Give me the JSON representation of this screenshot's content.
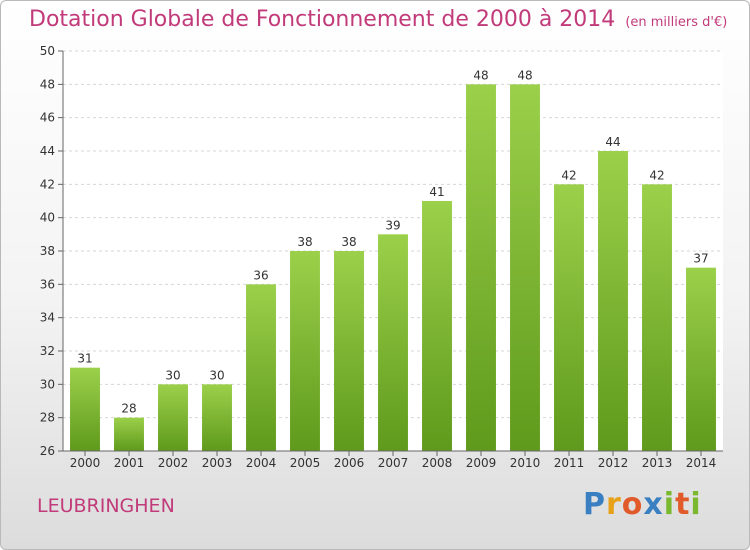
{
  "chart_data": {
    "type": "bar",
    "title": "Dotation Globale de Fonctionnement de 2000 à 2014",
    "subtitle": "(en milliers d'€)",
    "categories": [
      "2000",
      "2001",
      "2002",
      "2003",
      "2004",
      "2005",
      "2006",
      "2007",
      "2008",
      "2009",
      "2010",
      "2011",
      "2012",
      "2013",
      "2014"
    ],
    "values": [
      31,
      28,
      30,
      30,
      36,
      38,
      38,
      39,
      41,
      48,
      48,
      42,
      44,
      42,
      37
    ],
    "ylim": [
      26,
      50
    ],
    "yticks": [
      26,
      28,
      30,
      32,
      34,
      36,
      38,
      40,
      42,
      44,
      46,
      48,
      50
    ],
    "grid": true,
    "bar_color": "#7ab82e"
  },
  "footer": {
    "commune": "LEUBRINGHEN",
    "logo_letters": [
      "P",
      "r",
      "o",
      "x",
      "i",
      "t",
      "i"
    ],
    "logo_colors": [
      "#3a7fc1",
      "#e8a21a",
      "#e05a2a",
      "#3a7fc1",
      "#7ab82e",
      "#e05a2a",
      "#7ab82e"
    ]
  }
}
